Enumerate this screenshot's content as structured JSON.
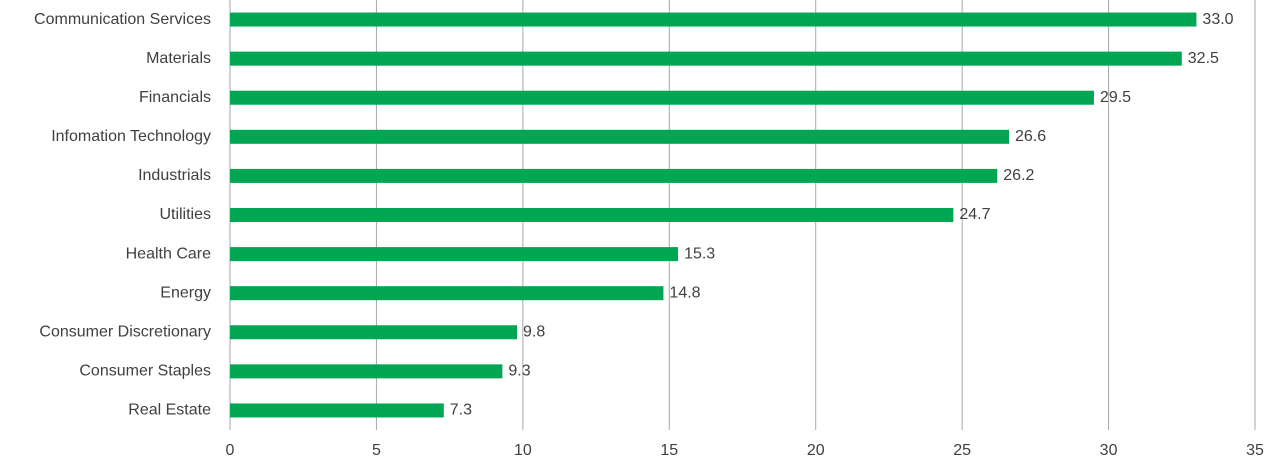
{
  "chart_data": {
    "type": "bar",
    "orientation": "horizontal",
    "categories": [
      "Communication Services",
      "Materials",
      "Financials",
      "Infomation Technology",
      "Industrials",
      "Utilities",
      "Health Care",
      "Energy",
      "Consumer Discretionary",
      "Consumer Staples",
      "Real Estate"
    ],
    "values": [
      33.0,
      32.5,
      29.5,
      26.6,
      26.2,
      24.7,
      15.3,
      14.8,
      9.8,
      9.3,
      7.3
    ],
    "value_labels": [
      "33.0",
      "32.5",
      "29.5",
      "26.6",
      "26.2",
      "24.7",
      "15.3",
      "14.8",
      "9.8",
      "9.3",
      "7.3"
    ],
    "color": "#00a651",
    "xlim": [
      0,
      35
    ],
    "xticks": [
      0,
      5,
      10,
      15,
      20,
      25,
      30,
      35
    ],
    "grid": true
  }
}
